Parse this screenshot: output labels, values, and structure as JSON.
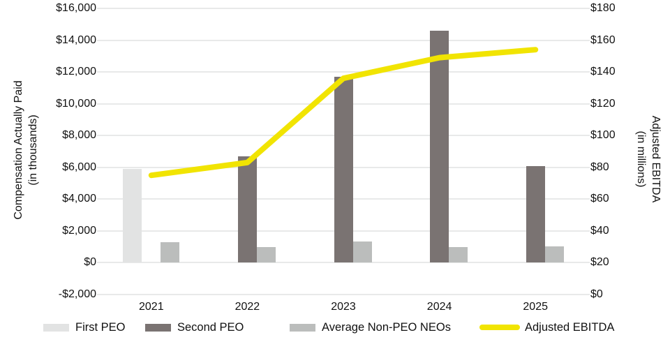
{
  "chart_data": {
    "type": "combo",
    "title": "",
    "categories": [
      "2021",
      "2022",
      "2023",
      "2024",
      "2025"
    ],
    "series": [
      {
        "name": "First PEO",
        "type": "bar",
        "axis": "left",
        "color": "#e2e3e3",
        "values": [
          5900,
          0,
          0,
          0,
          0
        ]
      },
      {
        "name": "Second PEO",
        "type": "bar",
        "axis": "left",
        "color": "#7a7372",
        "values": [
          0,
          6700,
          11700,
          14600,
          6100
        ]
      },
      {
        "name": "Average Non-PEO NEOs",
        "type": "bar",
        "axis": "left",
        "color": "#bbbdbc",
        "values": [
          1300,
          1000,
          1350,
          1000,
          1050
        ]
      },
      {
        "name": "Adjusted EBITDA",
        "type": "line",
        "axis": "right",
        "color": "#f1e402",
        "values": [
          75,
          83,
          136,
          149,
          154
        ]
      }
    ],
    "left_axis": {
      "title_line1": "Compensation Actually Paid",
      "title_line2": "(in thousands)",
      "min": -2000,
      "max": 16000,
      "tick_step": 2000,
      "ticks": [
        "$16,000",
        "$14,000",
        "$12,000",
        "$10,000",
        "$8,000",
        "$6,000",
        "$4,000",
        "$2,000",
        "$0",
        "-$2,000"
      ]
    },
    "right_axis": {
      "title_line1": "Adjusted EBITDA",
      "title_line2": "(in millions)",
      "min": 0,
      "max": 180,
      "tick_step": 20,
      "ticks": [
        "$180",
        "$160",
        "$140",
        "$120",
        "$100",
        "$80",
        "$60",
        "$40",
        "$20",
        "$0"
      ]
    },
    "grid": true,
    "legend_position": "bottom",
    "legend": [
      {
        "label": "First PEO",
        "swatch": "bar",
        "color": "#e2e3e3"
      },
      {
        "label": "Second PEO",
        "swatch": "bar",
        "color": "#7a7372"
      },
      {
        "label": "Average Non-PEO NEOs",
        "swatch": "bar",
        "color": "#bbbdbc"
      },
      {
        "label": "Adjusted EBITDA",
        "swatch": "line",
        "color": "#f1e402"
      }
    ]
  }
}
